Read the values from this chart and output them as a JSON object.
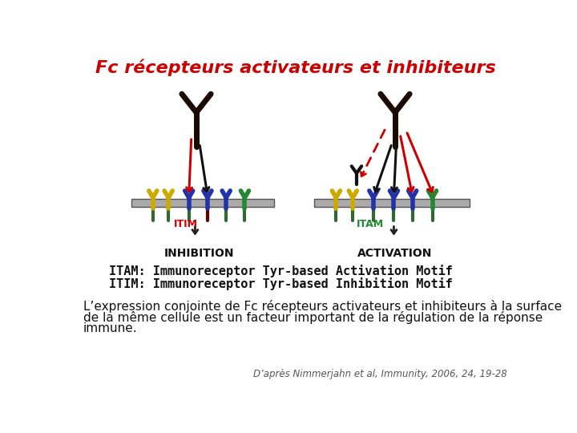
{
  "title": "Fc récepteurs activateurs et inhibiteurs",
  "title_color": "#cc0000",
  "title_fontsize": 16,
  "itam_line": "ITAM: Immunoreceptor Tyr-based Activation Motif",
  "itim_line": "ITIM: Immunoreceptor Tyr-based Inhibition Motif",
  "abbrev_fontsize": 11,
  "body_line1": "L’expression conjointe de Fc récepteurs activateurs et inhibiteurs à la surface",
  "body_line2": "de la même cellule est un facteur important de la régulation de la réponse",
  "body_line3": "immune.",
  "body_fontsize": 11,
  "citation": "D’après Nimmerjahn et al, Immunity, 2006, 24, 19-28",
  "citation_fontsize": 8.5,
  "bg_color": "#ffffff",
  "inhibition_label": "INHIBITION",
  "activation_label": "ACTIVATION",
  "label_fontsize": 10,
  "antibody_color": "#1a0a00",
  "yellow_color": "#ccaa00",
  "blue_color": "#2233aa",
  "green_color": "#228833",
  "red_color": "#cc0000",
  "dark_red_color": "#880000",
  "membrane_color": "#aaaaaa",
  "membrane_border": "#555555",
  "stalk_green": "#336633",
  "stalk_darkred": "#660000"
}
